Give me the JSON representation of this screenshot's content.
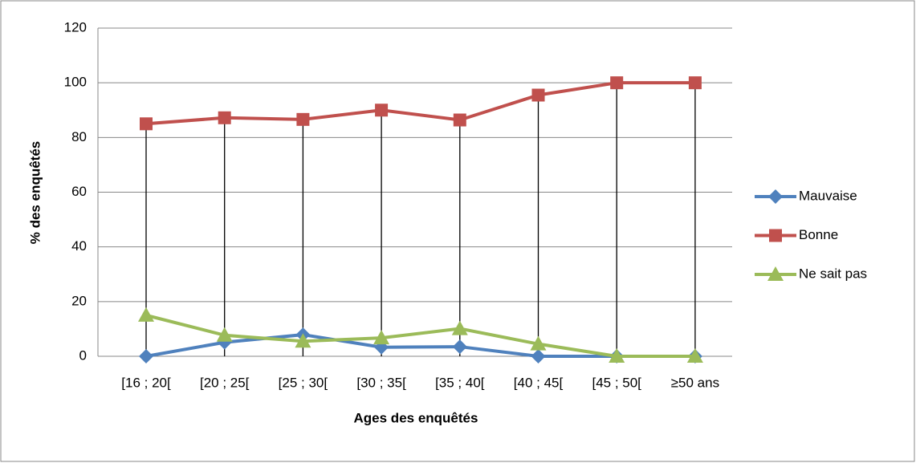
{
  "chart_data": {
    "type": "line",
    "xlabel": "Ages des enquêtés",
    "ylabel": "% des enquêtés",
    "categories": [
      "[16 ; 20[",
      "[20 ; 25[",
      "[25 ; 30[",
      "[30 ; 35[",
      "[35 ; 40[",
      "[40 ; 45[",
      "[45 ; 50[",
      "≥50 ans"
    ],
    "series": [
      {
        "name": "Mauvaise",
        "color": "#4f81bd",
        "marker": "diamond",
        "values": [
          0,
          5.1,
          7.9,
          3.3,
          3.5,
          0,
          0,
          0
        ]
      },
      {
        "name": "Bonne",
        "color": "#c0504d",
        "marker": "square",
        "values": [
          85,
          87.2,
          86.6,
          90,
          86.4,
          95.5,
          100,
          100
        ]
      },
      {
        "name": "Ne sait pas",
        "color": "#9bbb59",
        "marker": "triangle",
        "values": [
          15,
          7.7,
          5.5,
          6.7,
          10.1,
          4.5,
          0,
          0
        ]
      }
    ],
    "ylim": [
      0,
      120
    ],
    "yticks": [
      0,
      20,
      40,
      60,
      80,
      100,
      120
    ],
    "grid": true,
    "drop_lines": true,
    "legend": "right"
  }
}
